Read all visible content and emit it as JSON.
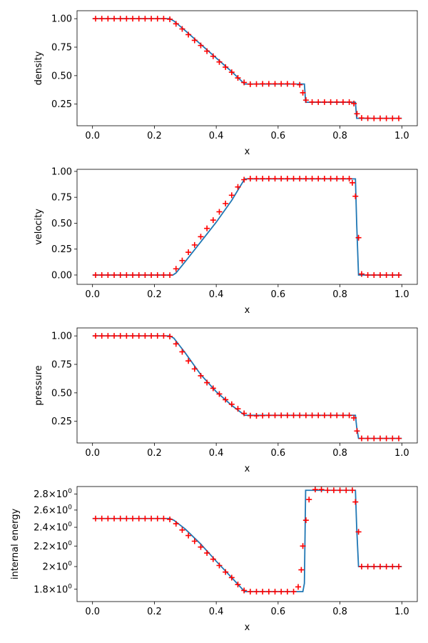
{
  "chart_data": [
    {
      "type": "line",
      "ylabel": "density",
      "xlabel": "x",
      "xlim": [
        -0.05,
        1.05
      ],
      "ylim": [
        0.06,
        1.07
      ],
      "xticks": [
        {
          "v": 0.0,
          "label": "0.0"
        },
        {
          "v": 0.2,
          "label": "0.2"
        },
        {
          "v": 0.4,
          "label": "0.4"
        },
        {
          "v": 0.6,
          "label": "0.6"
        },
        {
          "v": 0.8,
          "label": "0.8"
        },
        {
          "v": 1.0,
          "label": "1.0"
        }
      ],
      "yticks": [
        {
          "v": 0.25,
          "label": "0.25"
        },
        {
          "v": 0.5,
          "label": "0.50"
        },
        {
          "v": 0.75,
          "label": "0.75"
        },
        {
          "v": 1.0,
          "label": "1.00"
        }
      ],
      "grid": false,
      "series": [
        {
          "kind": "line",
          "color": "#1f77b4",
          "x": [
            0.0,
            0.25,
            0.263,
            0.3,
            0.35,
            0.4,
            0.45,
            0.492,
            0.685,
            0.689,
            0.85,
            0.854,
            1.0
          ],
          "y": [
            1.0,
            1.0,
            0.98,
            0.895,
            0.775,
            0.655,
            0.535,
            0.426,
            0.426,
            0.266,
            0.266,
            0.125,
            0.125
          ]
        },
        {
          "kind": "scatter",
          "marker": "+",
          "color": "#ff0000",
          "x": [
            0.01,
            0.03,
            0.05,
            0.07,
            0.09,
            0.11,
            0.13,
            0.15,
            0.17,
            0.19,
            0.21,
            0.23,
            0.25,
            0.27,
            0.29,
            0.31,
            0.33,
            0.35,
            0.37,
            0.39,
            0.41,
            0.43,
            0.45,
            0.47,
            0.49,
            0.51,
            0.53,
            0.55,
            0.57,
            0.59,
            0.61,
            0.63,
            0.65,
            0.67,
            0.68,
            0.69,
            0.71,
            0.73,
            0.75,
            0.77,
            0.79,
            0.81,
            0.83,
            0.845,
            0.855,
            0.87,
            0.89,
            0.91,
            0.93,
            0.95,
            0.97,
            0.99
          ],
          "y": [
            1.0,
            1.0,
            1.0,
            1.0,
            1.0,
            1.0,
            1.0,
            1.0,
            1.0,
            1.0,
            1.0,
            1.0,
            0.995,
            0.955,
            0.91,
            0.86,
            0.81,
            0.765,
            0.715,
            0.67,
            0.62,
            0.575,
            0.53,
            0.48,
            0.44,
            0.425,
            0.426,
            0.428,
            0.428,
            0.428,
            0.428,
            0.428,
            0.426,
            0.42,
            0.35,
            0.285,
            0.268,
            0.268,
            0.268,
            0.268,
            0.268,
            0.268,
            0.268,
            0.255,
            0.165,
            0.128,
            0.126,
            0.125,
            0.125,
            0.125,
            0.125,
            0.125
          ]
        }
      ]
    },
    {
      "type": "line",
      "ylabel": "velocity",
      "xlabel": "x",
      "xlim": [
        -0.05,
        1.05
      ],
      "ylim": [
        -0.09,
        1.02
      ],
      "xticks": [
        {
          "v": 0.0,
          "label": "0.0"
        },
        {
          "v": 0.2,
          "label": "0.2"
        },
        {
          "v": 0.4,
          "label": "0.4"
        },
        {
          "v": 0.6,
          "label": "0.6"
        },
        {
          "v": 0.8,
          "label": "0.8"
        },
        {
          "v": 1.0,
          "label": "1.0"
        }
      ],
      "yticks": [
        {
          "v": 0.0,
          "label": "0.00"
        },
        {
          "v": 0.25,
          "label": "0.25"
        },
        {
          "v": 0.5,
          "label": "0.50"
        },
        {
          "v": 0.75,
          "label": "0.75"
        },
        {
          "v": 1.0,
          "label": "1.00"
        }
      ],
      "grid": false,
      "series": [
        {
          "kind": "line",
          "color": "#1f77b4",
          "x": [
            0.0,
            0.26,
            0.27,
            0.3,
            0.35,
            0.4,
            0.45,
            0.492,
            0.85,
            0.854,
            0.86,
            1.0
          ],
          "y": [
            0.0,
            0.0,
            0.02,
            0.13,
            0.32,
            0.51,
            0.72,
            0.928,
            0.928,
            0.5,
            0.0,
            0.0
          ]
        },
        {
          "kind": "scatter",
          "marker": "+",
          "color": "#ff0000",
          "x": [
            0.01,
            0.03,
            0.05,
            0.07,
            0.09,
            0.11,
            0.13,
            0.15,
            0.17,
            0.19,
            0.21,
            0.23,
            0.25,
            0.27,
            0.29,
            0.31,
            0.33,
            0.35,
            0.37,
            0.39,
            0.41,
            0.43,
            0.45,
            0.47,
            0.49,
            0.51,
            0.53,
            0.55,
            0.57,
            0.59,
            0.61,
            0.63,
            0.65,
            0.67,
            0.69,
            0.71,
            0.73,
            0.75,
            0.77,
            0.79,
            0.81,
            0.83,
            0.84,
            0.85,
            0.86,
            0.87,
            0.89,
            0.91,
            0.93,
            0.95,
            0.97,
            0.99
          ],
          "y": [
            0.0,
            0.0,
            0.0,
            0.0,
            0.0,
            0.0,
            0.0,
            0.0,
            0.0,
            0.0,
            0.0,
            0.0,
            0.0,
            0.06,
            0.14,
            0.22,
            0.29,
            0.37,
            0.45,
            0.53,
            0.61,
            0.69,
            0.77,
            0.85,
            0.92,
            0.93,
            0.93,
            0.93,
            0.93,
            0.93,
            0.93,
            0.93,
            0.93,
            0.93,
            0.93,
            0.93,
            0.93,
            0.93,
            0.93,
            0.93,
            0.93,
            0.93,
            0.89,
            0.76,
            0.36,
            0.01,
            0.0,
            0.0,
            0.0,
            0.0,
            0.0,
            0.0
          ]
        }
      ]
    },
    {
      "type": "line",
      "ylabel": "pressure",
      "xlabel": "x",
      "xlim": [
        -0.05,
        1.05
      ],
      "ylim": [
        0.06,
        1.07
      ],
      "xticks": [
        {
          "v": 0.0,
          "label": "0.0"
        },
        {
          "v": 0.2,
          "label": "0.2"
        },
        {
          "v": 0.4,
          "label": "0.4"
        },
        {
          "v": 0.6,
          "label": "0.6"
        },
        {
          "v": 0.8,
          "label": "0.8"
        },
        {
          "v": 1.0,
          "label": "1.0"
        }
      ],
      "yticks": [
        {
          "v": 0.25,
          "label": "0.25"
        },
        {
          "v": 0.5,
          "label": "0.50"
        },
        {
          "v": 0.75,
          "label": "0.75"
        },
        {
          "v": 1.0,
          "label": "1.00"
        }
      ],
      "grid": false,
      "series": [
        {
          "kind": "line",
          "color": "#1f77b4",
          "x": [
            0.0,
            0.25,
            0.263,
            0.3,
            0.35,
            0.4,
            0.45,
            0.492,
            0.85,
            0.854,
            0.86,
            1.0
          ],
          "y": [
            1.0,
            1.0,
            0.98,
            0.85,
            0.66,
            0.51,
            0.39,
            0.303,
            0.303,
            0.2,
            0.1,
            0.1
          ]
        },
        {
          "kind": "scatter",
          "marker": "+",
          "color": "#ff0000",
          "x": [
            0.01,
            0.03,
            0.05,
            0.07,
            0.09,
            0.11,
            0.13,
            0.15,
            0.17,
            0.19,
            0.21,
            0.23,
            0.25,
            0.27,
            0.29,
            0.31,
            0.33,
            0.35,
            0.37,
            0.39,
            0.41,
            0.43,
            0.45,
            0.47,
            0.49,
            0.51,
            0.53,
            0.55,
            0.57,
            0.59,
            0.61,
            0.63,
            0.65,
            0.67,
            0.69,
            0.71,
            0.73,
            0.75,
            0.77,
            0.79,
            0.81,
            0.83,
            0.845,
            0.855,
            0.87,
            0.89,
            0.91,
            0.93,
            0.95,
            0.97,
            0.99
          ],
          "y": [
            1.0,
            1.0,
            1.0,
            1.0,
            1.0,
            1.0,
            1.0,
            1.0,
            1.0,
            1.0,
            1.0,
            1.0,
            0.995,
            0.93,
            0.86,
            0.78,
            0.71,
            0.65,
            0.59,
            0.54,
            0.49,
            0.44,
            0.4,
            0.36,
            0.32,
            0.3,
            0.298,
            0.3,
            0.302,
            0.302,
            0.302,
            0.302,
            0.302,
            0.302,
            0.302,
            0.302,
            0.302,
            0.302,
            0.302,
            0.302,
            0.302,
            0.302,
            0.28,
            0.165,
            0.1,
            0.1,
            0.1,
            0.1,
            0.1,
            0.1,
            0.1
          ]
        }
      ]
    },
    {
      "type": "line",
      "ylabel": "internal energy",
      "xlabel": "x",
      "xlim": [
        -0.05,
        1.05
      ],
      "ylim": [
        1.7,
        2.9
      ],
      "yscale": "log",
      "xticks": [
        {
          "v": 0.0,
          "label": "0.0"
        },
        {
          "v": 0.2,
          "label": "0.2"
        },
        {
          "v": 0.4,
          "label": "0.4"
        },
        {
          "v": 0.6,
          "label": "0.6"
        },
        {
          "v": 0.8,
          "label": "0.8"
        },
        {
          "v": 1.0,
          "label": "1.0"
        }
      ],
      "yticks": [
        {
          "v": 1.8,
          "mant": "1.8",
          "exp": "0"
        },
        {
          "v": 2.0,
          "mant": "2",
          "exp": "0"
        },
        {
          "v": 2.2,
          "mant": "2.2",
          "exp": "0"
        },
        {
          "v": 2.4,
          "mant": "2.4",
          "exp": "0"
        },
        {
          "v": 2.6,
          "mant": "2.6",
          "exp": "0"
        },
        {
          "v": 2.8,
          "mant": "2.8",
          "exp": "0"
        }
      ],
      "grid": false,
      "series": [
        {
          "kind": "line",
          "color": "#1f77b4",
          "x": [
            0.0,
            0.25,
            0.263,
            0.3,
            0.35,
            0.4,
            0.45,
            0.492,
            0.68,
            0.685,
            0.689,
            0.85,
            0.854,
            0.86,
            1.0
          ],
          "y": [
            2.5,
            2.5,
            2.48,
            2.38,
            2.22,
            2.05,
            1.9,
            1.78,
            1.78,
            1.85,
            2.85,
            2.85,
            2.4,
            2.0,
            2.0
          ]
        },
        {
          "kind": "scatter",
          "marker": "+",
          "color": "#ff0000",
          "x": [
            0.01,
            0.03,
            0.05,
            0.07,
            0.09,
            0.11,
            0.13,
            0.15,
            0.17,
            0.19,
            0.21,
            0.23,
            0.25,
            0.27,
            0.29,
            0.31,
            0.33,
            0.35,
            0.37,
            0.39,
            0.41,
            0.43,
            0.45,
            0.47,
            0.49,
            0.51,
            0.53,
            0.55,
            0.57,
            0.59,
            0.61,
            0.63,
            0.65,
            0.665,
            0.675,
            0.68,
            0.69,
            0.7,
            0.72,
            0.74,
            0.76,
            0.78,
            0.8,
            0.82,
            0.84,
            0.85,
            0.86,
            0.87,
            0.89,
            0.91,
            0.93,
            0.95,
            0.97,
            0.99
          ],
          "y": [
            2.5,
            2.5,
            2.5,
            2.5,
            2.5,
            2.5,
            2.5,
            2.5,
            2.5,
            2.5,
            2.5,
            2.5,
            2.49,
            2.44,
            2.37,
            2.31,
            2.25,
            2.19,
            2.13,
            2.07,
            2.01,
            1.95,
            1.9,
            1.84,
            1.79,
            1.78,
            1.78,
            1.78,
            1.78,
            1.78,
            1.78,
            1.78,
            1.78,
            1.82,
            1.97,
            2.2,
            2.48,
            2.73,
            2.86,
            2.86,
            2.85,
            2.85,
            2.85,
            2.85,
            2.85,
            2.7,
            2.35,
            2.0,
            2.0,
            2.0,
            2.0,
            2.0,
            2.0,
            2.0
          ]
        }
      ]
    }
  ]
}
